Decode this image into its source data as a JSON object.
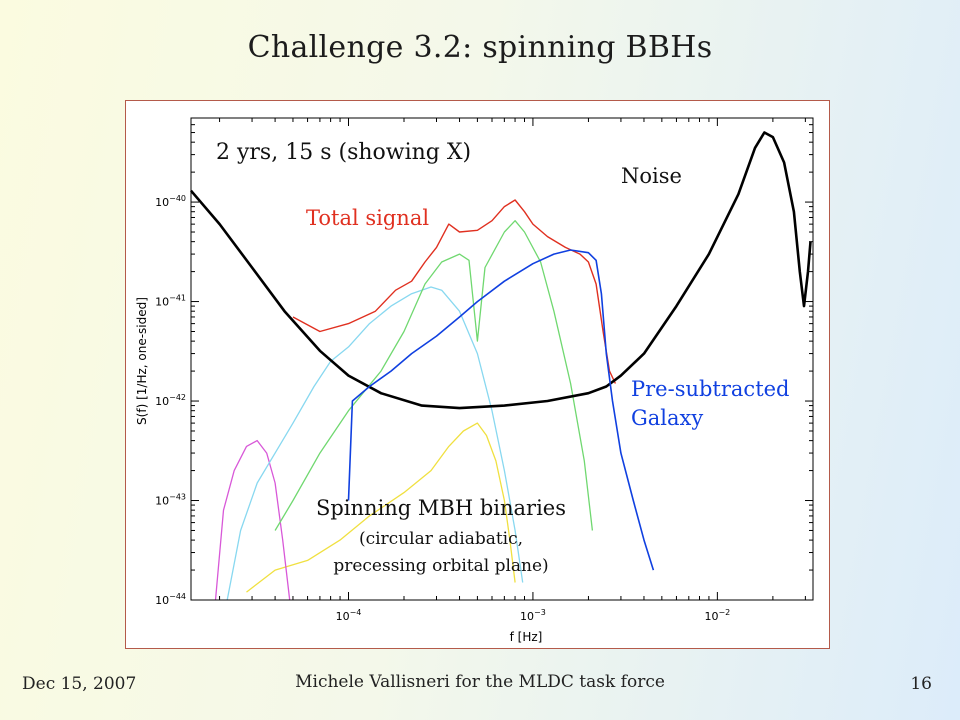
{
  "slide": {
    "title": "Challenge 3.2: spinning BBHs",
    "footer_left": "Dec 15, 2007",
    "footer_center": "Michele Vallisneri for the MLDC task force",
    "footer_right": "16"
  },
  "chart_data": {
    "type": "line",
    "xlabel": "f [Hz]",
    "ylabel": "S(f) [1/Hz, one-sided]",
    "xscale": "log",
    "yscale": "log",
    "xlim": [
      1.4e-05,
      0.033
    ],
    "ylim": [
      1e-44,
      7e-40
    ],
    "x_ticks": [
      {
        "value": 0.0001,
        "base": "10",
        "exp": "−4"
      },
      {
        "value": 0.001,
        "base": "10",
        "exp": "−3"
      },
      {
        "value": 0.01,
        "base": "10",
        "exp": "−2"
      }
    ],
    "y_ticks": [
      {
        "value": 1e-40,
        "base": "10",
        "exp": "−40"
      },
      {
        "value": 1e-41,
        "base": "10",
        "exp": "−41"
      },
      {
        "value": 1e-42,
        "base": "10",
        "exp": "−42"
      },
      {
        "value": 1e-43,
        "base": "10",
        "exp": "−43"
      },
      {
        "value": 1e-44,
        "base": "10",
        "exp": "−44"
      }
    ],
    "grid": false,
    "annotations": {
      "top_left": "2 yrs, 15 s (showing X)",
      "noise": "Noise",
      "total_signal": "Total signal",
      "galaxy_line1": "Pre-subtracted",
      "galaxy_line2": "Galaxy",
      "mbh_line1": "Spinning MBH binaries",
      "mbh_line2": "(circular adiabatic,",
      "mbh_line3": "precessing orbital plane)"
    },
    "series": [
      {
        "key": "noise",
        "color": "#000000",
        "width": 2.6,
        "points": [
          [
            1.4e-05,
            1.3e-40
          ],
          [
            2e-05,
            6e-41
          ],
          [
            3e-05,
            2.2e-41
          ],
          [
            4.5e-05,
            8e-42
          ],
          [
            7e-05,
            3.2e-42
          ],
          [
            0.0001,
            1.8e-42
          ],
          [
            0.00015,
            1.2e-42
          ],
          [
            0.00025,
            9e-43
          ],
          [
            0.0004,
            8.5e-43
          ],
          [
            0.0007,
            9e-43
          ],
          [
            0.0012,
            1e-42
          ],
          [
            0.002,
            1.2e-42
          ],
          [
            0.0025,
            1.4e-42
          ],
          [
            0.003,
            1.8e-42
          ],
          [
            0.004,
            3e-42
          ],
          [
            0.006,
            9e-42
          ],
          [
            0.009,
            3e-41
          ],
          [
            0.013,
            1.2e-40
          ],
          [
            0.016,
            3.5e-40
          ],
          [
            0.018,
            5e-40
          ],
          [
            0.02,
            4.5e-40
          ],
          [
            0.023,
            2.5e-40
          ],
          [
            0.026,
            8e-41
          ],
          [
            0.028,
            2e-41
          ],
          [
            0.0295,
            9e-42
          ],
          [
            0.031,
            2e-41
          ],
          [
            0.032,
            4e-41
          ]
        ]
      },
      {
        "key": "total_signal",
        "color": "#e03020",
        "width": 1.4,
        "points": [
          [
            5e-05,
            7e-42
          ],
          [
            7e-05,
            5e-42
          ],
          [
            0.0001,
            6e-42
          ],
          [
            0.00014,
            8e-42
          ],
          [
            0.00018,
            1.3e-41
          ],
          [
            0.00022,
            1.6e-41
          ],
          [
            0.00026,
            2.5e-41
          ],
          [
            0.0003,
            3.5e-41
          ],
          [
            0.00035,
            6e-41
          ],
          [
            0.0004,
            5e-41
          ],
          [
            0.0005,
            5.2e-41
          ],
          [
            0.0006,
            6.5e-41
          ],
          [
            0.0007,
            9e-41
          ],
          [
            0.0008,
            1.05e-40
          ],
          [
            0.0009,
            8e-41
          ],
          [
            0.001,
            6e-41
          ],
          [
            0.0012,
            4.5e-41
          ],
          [
            0.0015,
            3.5e-41
          ],
          [
            0.0018,
            3e-41
          ],
          [
            0.002,
            2.5e-41
          ],
          [
            0.0022,
            1.5e-41
          ],
          [
            0.0024,
            5e-42
          ],
          [
            0.0026,
            2e-42
          ],
          [
            0.0028,
            1.5e-42
          ]
        ]
      },
      {
        "key": "galaxy",
        "color": "#1040e0",
        "width": 1.6,
        "points": [
          [
            0.0001,
            1e-43
          ],
          [
            0.000105,
            1e-42
          ],
          [
            0.00013,
            1.4e-42
          ],
          [
            0.00017,
            2e-42
          ],
          [
            0.00022,
            3e-42
          ],
          [
            0.0003,
            4.5e-42
          ],
          [
            0.0004,
            7e-42
          ],
          [
            0.0005,
            1e-41
          ],
          [
            0.0007,
            1.6e-41
          ],
          [
            0.001,
            2.4e-41
          ],
          [
            0.0013,
            3e-41
          ],
          [
            0.0016,
            3.3e-41
          ],
          [
            0.002,
            3.1e-41
          ],
          [
            0.0022,
            2.6e-41
          ],
          [
            0.00235,
            1.2e-41
          ],
          [
            0.0025,
            3e-42
          ],
          [
            0.0027,
            1e-42
          ],
          [
            0.003,
            3e-43
          ],
          [
            0.0035,
            1e-43
          ],
          [
            0.004,
            4e-44
          ],
          [
            0.0045,
            2e-44
          ]
        ]
      },
      {
        "key": "mbh_green",
        "color": "#70d870",
        "width": 1.3,
        "points": [
          [
            4e-05,
            5e-44
          ],
          [
            5e-05,
            1e-43
          ],
          [
            7e-05,
            3e-43
          ],
          [
            0.0001,
            8e-43
          ],
          [
            0.00015,
            2e-42
          ],
          [
            0.0002,
            5e-42
          ],
          [
            0.00026,
            1.5e-41
          ],
          [
            0.00032,
            2.5e-41
          ],
          [
            0.0004,
            3e-41
          ],
          [
            0.00045,
            2.6e-41
          ],
          [
            0.0005,
            4e-42
          ],
          [
            0.00055,
            2.2e-41
          ],
          [
            0.0007,
            5e-41
          ],
          [
            0.0008,
            6.5e-41
          ],
          [
            0.0009,
            5e-41
          ],
          [
            0.0011,
            2.5e-41
          ],
          [
            0.0013,
            8e-42
          ],
          [
            0.0016,
            1.5e-42
          ],
          [
            0.0019,
            2.5e-43
          ],
          [
            0.0021,
            5e-44
          ]
        ]
      },
      {
        "key": "mbh_cyan",
        "color": "#88d8f0",
        "width": 1.3,
        "points": [
          [
            2.2e-05,
            1e-44
          ],
          [
            2.6e-05,
            5e-44
          ],
          [
            3.2e-05,
            1.5e-43
          ],
          [
            4e-05,
            3e-43
          ],
          [
            5e-05,
            6e-43
          ],
          [
            6.5e-05,
            1.4e-42
          ],
          [
            8e-05,
            2.5e-42
          ],
          [
            0.0001,
            3.5e-42
          ],
          [
            0.00013,
            6e-42
          ],
          [
            0.00017,
            9e-42
          ],
          [
            0.00022,
            1.2e-41
          ],
          [
            0.00028,
            1.4e-41
          ],
          [
            0.00032,
            1.3e-41
          ],
          [
            0.0004,
            8e-42
          ],
          [
            0.0005,
            3e-42
          ],
          [
            0.0006,
            8e-43
          ],
          [
            0.0007,
            2e-43
          ],
          [
            0.0008,
            5e-44
          ],
          [
            0.00088,
            1.5e-44
          ]
        ]
      },
      {
        "key": "mbh_magenta",
        "color": "#d858d8",
        "width": 1.3,
        "points": [
          [
            1.9e-05,
            1e-44
          ],
          [
            2.1e-05,
            8e-44
          ],
          [
            2.4e-05,
            2e-43
          ],
          [
            2.8e-05,
            3.5e-43
          ],
          [
            3.2e-05,
            4e-43
          ],
          [
            3.6e-05,
            3e-43
          ],
          [
            4e-05,
            1.5e-43
          ],
          [
            4.4e-05,
            4e-44
          ],
          [
            4.8e-05,
            1e-44
          ]
        ]
      },
      {
        "key": "mbh_yellow",
        "color": "#f0e040",
        "width": 1.3,
        "points": [
          [
            2.8e-05,
            1.2e-44
          ],
          [
            4e-05,
            2e-44
          ],
          [
            6e-05,
            2.5e-44
          ],
          [
            9e-05,
            4e-44
          ],
          [
            0.00013,
            7e-44
          ],
          [
            0.0002,
            1.2e-43
          ],
          [
            0.00028,
            2e-43
          ],
          [
            0.00035,
            3.5e-43
          ],
          [
            0.00042,
            5e-43
          ],
          [
            0.0005,
            6e-43
          ],
          [
            0.00056,
            4.5e-43
          ],
          [
            0.00063,
            2.5e-43
          ],
          [
            0.0007,
            1e-43
          ],
          [
            0.00075,
            4e-44
          ],
          [
            0.0008,
            1.5e-44
          ]
        ]
      }
    ]
  }
}
